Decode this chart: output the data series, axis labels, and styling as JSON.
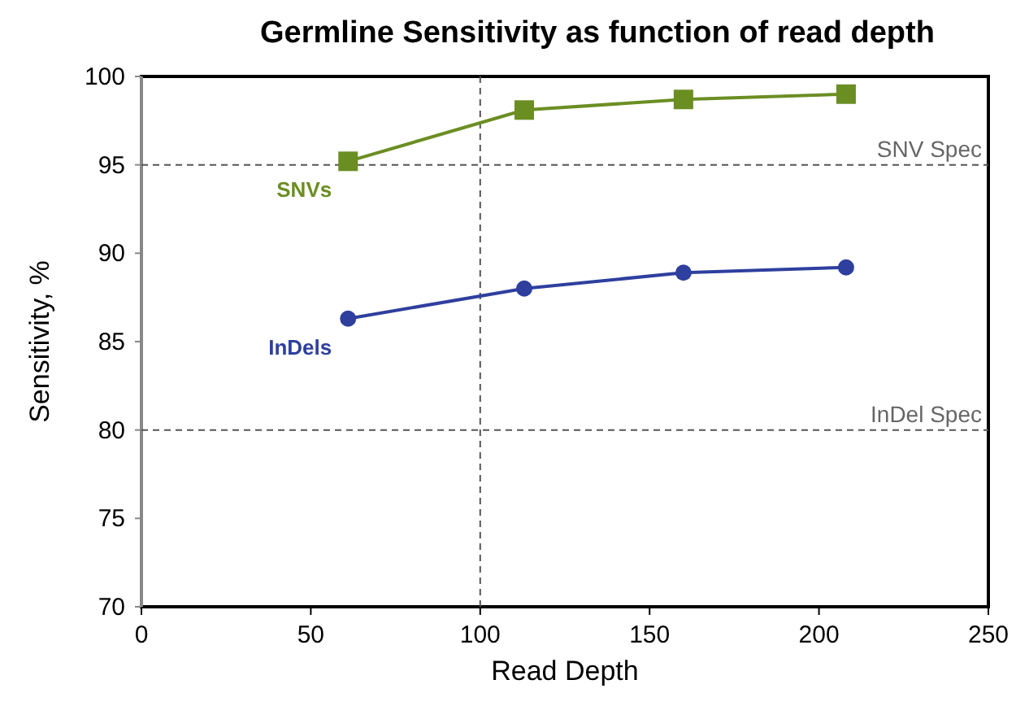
{
  "chart_data": {
    "type": "line",
    "title": "Germline Sensitivity as function of read depth",
    "xlabel": "Read Depth",
    "ylabel": "Sensitivity, %",
    "xlim": [
      0,
      250
    ],
    "xticks": [
      0,
      50,
      100,
      150,
      200,
      250
    ],
    "ylim": [
      70,
      100
    ],
    "yticks": [
      70,
      75,
      80,
      85,
      90,
      95,
      100
    ],
    "grid": false,
    "legend": false,
    "series": [
      {
        "name": "SNVs",
        "color": "#6b8e23",
        "marker": "square",
        "x": [
          61,
          113,
          160,
          208
        ],
        "values": [
          95.2,
          98.1,
          98.7,
          99.0
        ]
      },
      {
        "name": "InDels",
        "color": "#2e3f9e",
        "marker": "circle",
        "x": [
          61,
          113,
          160,
          208
        ],
        "values": [
          86.3,
          88.0,
          88.9,
          89.2
        ]
      }
    ],
    "ref_lines": [
      {
        "axis": "y",
        "value": 95,
        "label": "SNV Spec",
        "line_style": "dashed"
      },
      {
        "axis": "y",
        "value": 80,
        "label": "InDel Spec",
        "line_style": "dashed"
      },
      {
        "axis": "x",
        "value": 100,
        "line_style": "dashed"
      }
    ]
  }
}
